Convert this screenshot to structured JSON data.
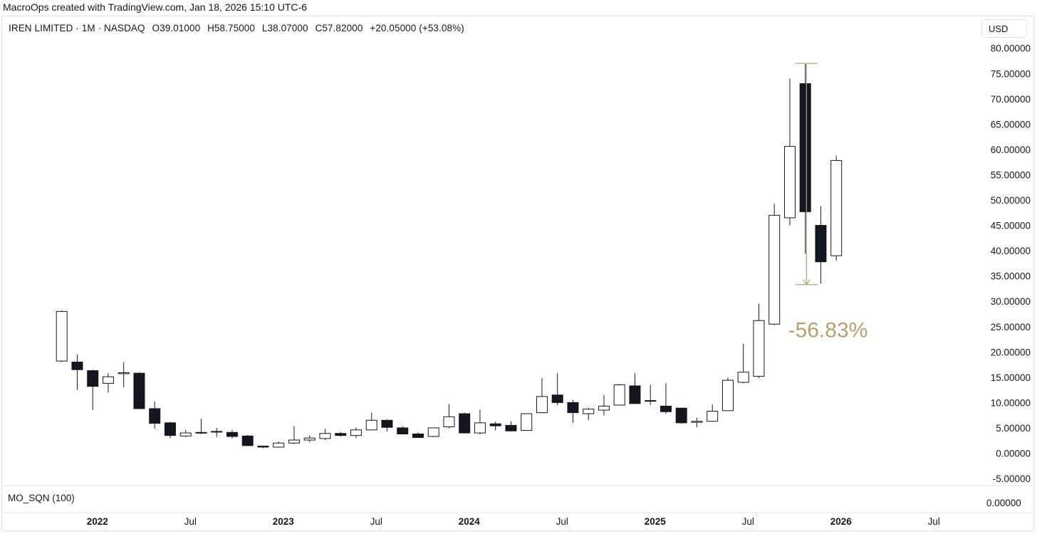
{
  "credit": "MacroOps created with TradingView.com, Jan 18, 2026 15:10 UTC-6",
  "legend": {
    "symbol": "IREN LIMITED · 1M · NASDAQ",
    "open": "O39.01000",
    "high": "H58.75000",
    "low": "L38.07000",
    "close": "C57.82000",
    "change": "+20.05000 (+53.08%)"
  },
  "currency": "USD",
  "indicator": {
    "label": "MO_SQN (100)",
    "value": "0.00000"
  },
  "colors": {
    "up_fill": "#ffffff",
    "down_fill": "#131722",
    "candle_border": "#131722",
    "measure": "#b8a06a",
    "border": "#e0e3eb"
  },
  "chart_data": {
    "type": "candlestick",
    "title": "IREN LIMITED · 1M · NASDAQ",
    "ylim": [
      -7,
      82
    ],
    "y_ticks": [
      "80.00000",
      "75.00000",
      "70.00000",
      "65.00000",
      "60.00000",
      "55.00000",
      "50.00000",
      "45.00000",
      "40.00000",
      "35.00000",
      "30.00000",
      "25.00000",
      "20.00000",
      "15.00000",
      "10.00000",
      "5.00000",
      "0.00000",
      "-5.00000"
    ],
    "y_tick_values": [
      80,
      75,
      70,
      65,
      60,
      55,
      50,
      45,
      40,
      35,
      30,
      25,
      20,
      15,
      10,
      5,
      0,
      -5
    ],
    "x_ticks": [
      {
        "label": "2022",
        "index": 2.3,
        "bold": true
      },
      {
        "label": "Jul",
        "index": 8.3,
        "bold": false
      },
      {
        "label": "2023",
        "index": 14.3,
        "bold": true
      },
      {
        "label": "Jul",
        "index": 20.3,
        "bold": false
      },
      {
        "label": "2024",
        "index": 26.3,
        "bold": true
      },
      {
        "label": "Jul",
        "index": 32.3,
        "bold": false
      },
      {
        "label": "2025",
        "index": 38.3,
        "bold": true
      },
      {
        "label": "Jul",
        "index": 44.3,
        "bold": false
      },
      {
        "label": "2026",
        "index": 50.3,
        "bold": true
      },
      {
        "label": "Jul",
        "index": 56.3,
        "bold": false
      }
    ],
    "candles": [
      {
        "o": 18.2,
        "h": 28.2,
        "l": 18.0,
        "c": 28.0
      },
      {
        "o": 18.0,
        "h": 19.5,
        "l": 12.5,
        "c": 16.5
      },
      {
        "o": 16.3,
        "h": 16.5,
        "l": 8.5,
        "c": 13.2
      },
      {
        "o": 13.8,
        "h": 15.8,
        "l": 12.0,
        "c": 15.1
      },
      {
        "o": 15.7,
        "h": 18.0,
        "l": 13.0,
        "c": 15.9
      },
      {
        "o": 15.8,
        "h": 16.0,
        "l": 8.8,
        "c": 8.8
      },
      {
        "o": 8.8,
        "h": 10.2,
        "l": 4.8,
        "c": 5.9
      },
      {
        "o": 6.0,
        "h": 6.2,
        "l": 3.0,
        "c": 3.5
      },
      {
        "o": 3.4,
        "h": 4.6,
        "l": 3.2,
        "c": 4.0
      },
      {
        "o": 4.0,
        "h": 6.8,
        "l": 3.8,
        "c": 4.1
      },
      {
        "o": 4.2,
        "h": 5.0,
        "l": 3.2,
        "c": 4.3
      },
      {
        "o": 4.1,
        "h": 4.6,
        "l": 2.9,
        "c": 3.3
      },
      {
        "o": 3.4,
        "h": 3.6,
        "l": 1.4,
        "c": 1.5
      },
      {
        "o": 1.4,
        "h": 1.5,
        "l": 1.0,
        "c": 1.2
      },
      {
        "o": 1.2,
        "h": 2.3,
        "l": 1.1,
        "c": 2.0
      },
      {
        "o": 2.0,
        "h": 5.3,
        "l": 1.8,
        "c": 2.6
      },
      {
        "o": 2.6,
        "h": 3.5,
        "l": 2.2,
        "c": 3.0
      },
      {
        "o": 2.9,
        "h": 4.8,
        "l": 2.6,
        "c": 3.9
      },
      {
        "o": 3.9,
        "h": 4.2,
        "l": 3.3,
        "c": 3.5
      },
      {
        "o": 3.5,
        "h": 5.1,
        "l": 3.0,
        "c": 4.6
      },
      {
        "o": 4.6,
        "h": 8.0,
        "l": 4.5,
        "c": 6.5
      },
      {
        "o": 6.5,
        "h": 6.7,
        "l": 4.3,
        "c": 5.1
      },
      {
        "o": 5.0,
        "h": 5.3,
        "l": 3.7,
        "c": 3.8
      },
      {
        "o": 3.8,
        "h": 4.1,
        "l": 3.2,
        "c": 3.1
      },
      {
        "o": 3.3,
        "h": 5.0,
        "l": 3.2,
        "c": 5.0
      },
      {
        "o": 5.2,
        "h": 9.7,
        "l": 5.0,
        "c": 7.2
      },
      {
        "o": 7.8,
        "h": 8.0,
        "l": 3.9,
        "c": 4.0
      },
      {
        "o": 4.0,
        "h": 8.6,
        "l": 3.7,
        "c": 6.0
      },
      {
        "o": 5.8,
        "h": 6.2,
        "l": 4.5,
        "c": 5.4
      },
      {
        "o": 5.5,
        "h": 6.3,
        "l": 4.3,
        "c": 4.4
      },
      {
        "o": 4.5,
        "h": 7.8,
        "l": 4.4,
        "c": 7.8
      },
      {
        "o": 8.0,
        "h": 14.8,
        "l": 7.9,
        "c": 11.2
      },
      {
        "o": 11.5,
        "h": 15.8,
        "l": 9.5,
        "c": 10.0
      },
      {
        "o": 10.0,
        "h": 10.5,
        "l": 6.0,
        "c": 8.0
      },
      {
        "o": 7.8,
        "h": 9.0,
        "l": 6.5,
        "c": 8.7
      },
      {
        "o": 8.5,
        "h": 11.5,
        "l": 7.5,
        "c": 9.3
      },
      {
        "o": 9.5,
        "h": 13.7,
        "l": 9.4,
        "c": 13.5
      },
      {
        "o": 13.3,
        "h": 15.8,
        "l": 9.8,
        "c": 9.8
      },
      {
        "o": 10.3,
        "h": 13.5,
        "l": 9.5,
        "c": 10.4
      },
      {
        "o": 9.3,
        "h": 13.8,
        "l": 7.8,
        "c": 8.2
      },
      {
        "o": 8.9,
        "h": 9.0,
        "l": 5.8,
        "c": 6.0
      },
      {
        "o": 6.1,
        "h": 7.0,
        "l": 5.1,
        "c": 6.3
      },
      {
        "o": 6.3,
        "h": 9.6,
        "l": 6.2,
        "c": 8.3
      },
      {
        "o": 8.4,
        "h": 14.9,
        "l": 8.3,
        "c": 14.4
      },
      {
        "o": 14.0,
        "h": 21.6,
        "l": 13.8,
        "c": 16.0
      },
      {
        "o": 15.2,
        "h": 29.5,
        "l": 14.8,
        "c": 26.2
      },
      {
        "o": 25.5,
        "h": 49.3,
        "l": 25.3,
        "c": 47.0
      },
      {
        "o": 46.5,
        "h": 74.0,
        "l": 45.0,
        "c": 60.6
      },
      {
        "o": 73.0,
        "h": 76.9,
        "l": 39.4,
        "c": 47.7
      },
      {
        "o": 45.0,
        "h": 48.8,
        "l": 33.5,
        "c": 37.8
      },
      {
        "o": 39.01,
        "h": 58.75,
        "l": 38.07,
        "c": 57.82
      }
    ],
    "annotations": [
      {
        "type": "price_range",
        "from_index": 47.35,
        "to_index": 48.8,
        "top": 77.0,
        "bottom": 33.3,
        "label": "-56.83%",
        "label_value": 24.5
      }
    ]
  }
}
